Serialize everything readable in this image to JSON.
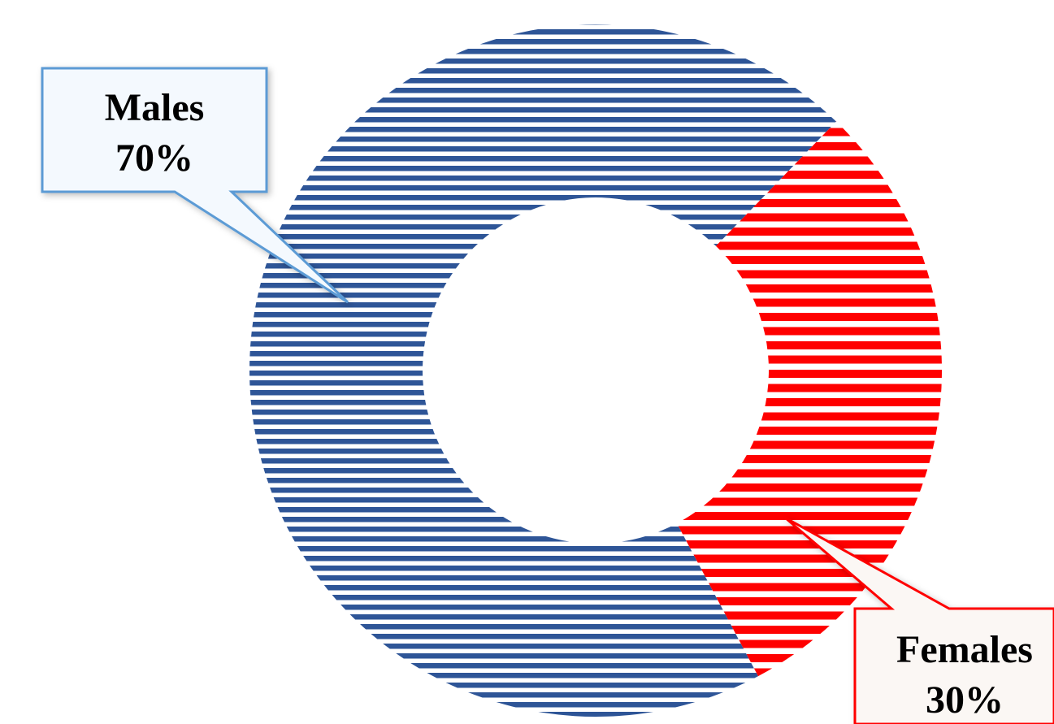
{
  "chart_data": {
    "type": "pie",
    "variant": "donut",
    "fill_pattern": "horizontal-stripes",
    "slices": [
      {
        "label": "Males",
        "value": 70,
        "value_label": "70%",
        "color": "#2E5597",
        "callout_border": "#5B9BD5",
        "callout_bg": "#F4F9FE"
      },
      {
        "label": "Females",
        "value": 30,
        "value_label": "30%",
        "color": "#FF0000",
        "callout_border": "#FF0000",
        "callout_bg": "#FBF7F4"
      }
    ],
    "legend": "none"
  }
}
